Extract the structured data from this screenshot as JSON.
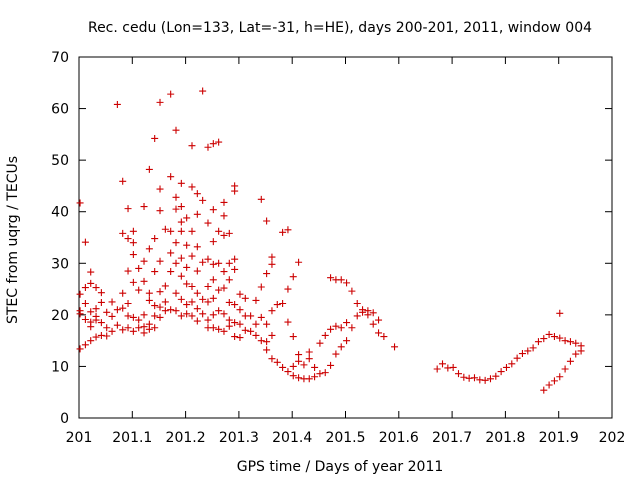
{
  "chart_data": {
    "type": "scatter",
    "title": "Rec. cedu (Lon=133, Lat=-31, h=HE), days 200-201, 2011, window 004",
    "xlabel": "GPS time / Days of year 2011",
    "ylabel": "STEC from uqrg / TECUs",
    "xlim": [
      201,
      202
    ],
    "ylim": [
      0,
      70
    ],
    "x_ticks": [
      "201",
      "201.1",
      "201.2",
      "201.3",
      "201.4",
      "201.5",
      "201.6",
      "201.7",
      "201.8",
      "201.9",
      "202"
    ],
    "y_ticks": [
      "0",
      "10",
      "20",
      "30",
      "40",
      "50",
      "60",
      "70"
    ],
    "grid": false,
    "marker": "+",
    "color": "#cc0000",
    "series": [
      {
        "points": [
          [
            201.002,
            41.7
          ],
          [
            201.002,
            24.0
          ],
          [
            201.002,
            20.8
          ],
          [
            201.002,
            20.2
          ],
          [
            201.002,
            13.4
          ],
          [
            201.012,
            34.1
          ],
          [
            201.012,
            25.3
          ],
          [
            201.012,
            22.2
          ],
          [
            201.012,
            19.1
          ],
          [
            201.012,
            14.2
          ],
          [
            201.022,
            28.3
          ],
          [
            201.022,
            26.1
          ],
          [
            201.022,
            20.6
          ],
          [
            201.022,
            18.6
          ],
          [
            201.022,
            17.7
          ],
          [
            201.022,
            15.0
          ],
          [
            201.032,
            25.3
          ],
          [
            201.032,
            21.2
          ],
          [
            201.032,
            19.7
          ],
          [
            201.032,
            19.0
          ],
          [
            201.032,
            15.7
          ],
          [
            201.042,
            24.3
          ],
          [
            201.042,
            22.4
          ],
          [
            201.042,
            18.5
          ],
          [
            201.042,
            16.0
          ],
          [
            201.052,
            20.5
          ],
          [
            201.052,
            17.5
          ],
          [
            201.052,
            15.9
          ],
          [
            201.062,
            22.5
          ],
          [
            201.062,
            19.7
          ],
          [
            201.062,
            16.8
          ],
          [
            201.072,
            60.8
          ],
          [
            201.072,
            21.0
          ],
          [
            201.072,
            18.0
          ],
          [
            201.082,
            45.9
          ],
          [
            201.082,
            35.8
          ],
          [
            201.082,
            24.2
          ],
          [
            201.082,
            21.3
          ],
          [
            201.082,
            17.1
          ],
          [
            201.092,
            40.6
          ],
          [
            201.092,
            34.8
          ],
          [
            201.092,
            28.5
          ],
          [
            201.092,
            22.2
          ],
          [
            201.092,
            19.8
          ],
          [
            201.092,
            17.5
          ],
          [
            201.102,
            36.2
          ],
          [
            201.102,
            34.0
          ],
          [
            201.102,
            31.7
          ],
          [
            201.102,
            26.3
          ],
          [
            201.102,
            19.5
          ],
          [
            201.102,
            16.8
          ],
          [
            201.112,
            29.0
          ],
          [
            201.112,
            24.8
          ],
          [
            201.112,
            19.0
          ],
          [
            201.112,
            17.5
          ],
          [
            201.122,
            41.0
          ],
          [
            201.122,
            30.4
          ],
          [
            201.122,
            26.5
          ],
          [
            201.122,
            20.0
          ],
          [
            201.122,
            17.7
          ],
          [
            201.122,
            16.5
          ],
          [
            201.132,
            48.2
          ],
          [
            201.132,
            32.8
          ],
          [
            201.132,
            24.2
          ],
          [
            201.132,
            22.8
          ],
          [
            201.132,
            18.2
          ],
          [
            201.132,
            17.2
          ],
          [
            201.142,
            54.2
          ],
          [
            201.142,
            34.8
          ],
          [
            201.142,
            28.4
          ],
          [
            201.142,
            21.8
          ],
          [
            201.142,
            19.8
          ],
          [
            201.142,
            17.5
          ],
          [
            201.152,
            61.2
          ],
          [
            201.152,
            44.4
          ],
          [
            201.152,
            40.2
          ],
          [
            201.152,
            30.4
          ],
          [
            201.152,
            24.5
          ],
          [
            201.152,
            21.5
          ],
          [
            201.152,
            19.5
          ],
          [
            201.162,
            36.6
          ],
          [
            201.162,
            25.6
          ],
          [
            201.162,
            22.5
          ],
          [
            201.162,
            20.8
          ],
          [
            201.172,
            62.8
          ],
          [
            201.172,
            46.8
          ],
          [
            201.172,
            36.2
          ],
          [
            201.172,
            32.0
          ],
          [
            201.172,
            28.4
          ],
          [
            201.172,
            21.0
          ],
          [
            201.182,
            55.8
          ],
          [
            201.182,
            42.8
          ],
          [
            201.182,
            40.5
          ],
          [
            201.182,
            34.0
          ],
          [
            201.182,
            30.0
          ],
          [
            201.182,
            24.2
          ],
          [
            201.182,
            20.8
          ],
          [
            201.192,
            45.5
          ],
          [
            201.192,
            41.0
          ],
          [
            201.192,
            38.0
          ],
          [
            201.192,
            36.2
          ],
          [
            201.192,
            31.0
          ],
          [
            201.192,
            27.5
          ],
          [
            201.192,
            23.0
          ],
          [
            201.192,
            19.8
          ],
          [
            201.202,
            38.8
          ],
          [
            201.202,
            33.5
          ],
          [
            201.202,
            29.2
          ],
          [
            201.202,
            26.0
          ],
          [
            201.202,
            22.0
          ],
          [
            201.202,
            20.2
          ],
          [
            201.212,
            52.8
          ],
          [
            201.212,
            44.8
          ],
          [
            201.212,
            36.2
          ],
          [
            201.212,
            31.4
          ],
          [
            201.212,
            25.5
          ],
          [
            201.212,
            22.5
          ],
          [
            201.212,
            19.8
          ],
          [
            201.222,
            43.5
          ],
          [
            201.222,
            39.5
          ],
          [
            201.222,
            33.2
          ],
          [
            201.222,
            28.5
          ],
          [
            201.222,
            24.2
          ],
          [
            201.222,
            21.2
          ],
          [
            201.222,
            18.8
          ],
          [
            201.232,
            63.4
          ],
          [
            201.232,
            42.2
          ],
          [
            201.232,
            30.2
          ],
          [
            201.232,
            23.0
          ],
          [
            201.232,
            20.2
          ],
          [
            201.242,
            52.5
          ],
          [
            201.242,
            37.8
          ],
          [
            201.242,
            30.8
          ],
          [
            201.242,
            25.5
          ],
          [
            201.242,
            22.5
          ],
          [
            201.242,
            19.0
          ],
          [
            201.242,
            17.5
          ],
          [
            201.252,
            53.2
          ],
          [
            201.252,
            40.4
          ],
          [
            201.252,
            34.2
          ],
          [
            201.252,
            29.8
          ],
          [
            201.252,
            26.8
          ],
          [
            201.252,
            23.2
          ],
          [
            201.252,
            20.0
          ],
          [
            201.252,
            17.5
          ],
          [
            201.262,
            53.5
          ],
          [
            201.262,
            36.2
          ],
          [
            201.262,
            30.0
          ],
          [
            201.262,
            24.8
          ],
          [
            201.262,
            20.8
          ],
          [
            201.262,
            17.2
          ],
          [
            201.272,
            41.8
          ],
          [
            201.272,
            39.2
          ],
          [
            201.272,
            35.4
          ],
          [
            201.272,
            28.4
          ],
          [
            201.272,
            25.2
          ],
          [
            201.272,
            20.2
          ],
          [
            201.272,
            16.8
          ],
          [
            201.282,
            35.8
          ],
          [
            201.282,
            30.0
          ],
          [
            201.282,
            26.8
          ],
          [
            201.282,
            22.4
          ],
          [
            201.282,
            19.0
          ],
          [
            201.282,
            17.8
          ],
          [
            201.292,
            45.0
          ],
          [
            201.292,
            44.0
          ],
          [
            201.292,
            30.8
          ],
          [
            201.292,
            28.8
          ],
          [
            201.292,
            22.0
          ],
          [
            201.292,
            18.5
          ],
          [
            201.292,
            15.8
          ],
          [
            201.302,
            24.0
          ],
          [
            201.302,
            21.0
          ],
          [
            201.302,
            18.2
          ],
          [
            201.302,
            15.6
          ],
          [
            201.312,
            23.2
          ],
          [
            201.312,
            19.8
          ],
          [
            201.312,
            17.0
          ],
          [
            201.322,
            19.8
          ],
          [
            201.322,
            16.8
          ],
          [
            201.332,
            22.8
          ],
          [
            201.332,
            18.2
          ],
          [
            201.332,
            16.0
          ],
          [
            201.342,
            42.4
          ],
          [
            201.342,
            25.4
          ],
          [
            201.342,
            19.5
          ],
          [
            201.342,
            15.0
          ],
          [
            201.352,
            38.2
          ],
          [
            201.352,
            28.0
          ],
          [
            201.352,
            18.2
          ],
          [
            201.352,
            14.8
          ],
          [
            201.352,
            13.2
          ],
          [
            201.362,
            31.2
          ],
          [
            201.362,
            29.8
          ],
          [
            201.362,
            20.8
          ],
          [
            201.362,
            16.0
          ],
          [
            201.362,
            11.5
          ],
          [
            201.372,
            22.0
          ],
          [
            201.372,
            10.8
          ],
          [
            201.382,
            36.0
          ],
          [
            201.382,
            22.2
          ],
          [
            201.382,
            9.8
          ],
          [
            201.392,
            36.5
          ],
          [
            201.392,
            25.0
          ],
          [
            201.392,
            18.6
          ],
          [
            201.392,
            9.0
          ],
          [
            201.402,
            27.4
          ],
          [
            201.402,
            15.8
          ],
          [
            201.402,
            10.0
          ],
          [
            201.402,
            8.2
          ],
          [
            201.412,
            30.2
          ],
          [
            201.412,
            12.3
          ],
          [
            201.412,
            11.0
          ],
          [
            201.412,
            7.8
          ],
          [
            201.422,
            10.3
          ],
          [
            201.422,
            7.6
          ],
          [
            201.432,
            12.8
          ],
          [
            201.432,
            11.5
          ],
          [
            201.432,
            7.6
          ],
          [
            201.442,
            9.8
          ],
          [
            201.442,
            8.0
          ],
          [
            201.452,
            14.5
          ],
          [
            201.452,
            8.6
          ],
          [
            201.462,
            16.0
          ],
          [
            201.462,
            8.8
          ],
          [
            201.472,
            27.2
          ],
          [
            201.472,
            17.2
          ],
          [
            201.472,
            10.2
          ],
          [
            201.482,
            26.8
          ],
          [
            201.482,
            17.8
          ],
          [
            201.482,
            12.4
          ],
          [
            201.492,
            26.8
          ],
          [
            201.492,
            17.5
          ],
          [
            201.492,
            13.8
          ],
          [
            201.502,
            26.2
          ],
          [
            201.502,
            18.5
          ],
          [
            201.502,
            15.0
          ],
          [
            201.512,
            24.6
          ],
          [
            201.512,
            17.5
          ],
          [
            201.522,
            22.2
          ],
          [
            201.522,
            19.8
          ],
          [
            201.532,
            21.0
          ],
          [
            201.532,
            20.5
          ],
          [
            201.542,
            20.8
          ],
          [
            201.542,
            20.0
          ],
          [
            201.552,
            20.4
          ],
          [
            201.552,
            18.2
          ],
          [
            201.562,
            19.0
          ],
          [
            201.562,
            16.5
          ],
          [
            201.572,
            15.8
          ],
          [
            201.592,
            13.8
          ],
          [
            201.672,
            9.5
          ],
          [
            201.682,
            10.5
          ],
          [
            201.692,
            9.7
          ],
          [
            201.702,
            9.8
          ],
          [
            201.712,
            8.6
          ],
          [
            201.722,
            7.9
          ],
          [
            201.732,
            7.7
          ],
          [
            201.742,
            7.8
          ],
          [
            201.752,
            7.4
          ],
          [
            201.762,
            7.3
          ],
          [
            201.772,
            7.6
          ],
          [
            201.782,
            8.1
          ],
          [
            201.792,
            9.0
          ],
          [
            201.802,
            9.8
          ],
          [
            201.812,
            10.5
          ],
          [
            201.822,
            11.6
          ],
          [
            201.832,
            12.5
          ],
          [
            201.842,
            13.0
          ],
          [
            201.852,
            13.6
          ],
          [
            201.862,
            14.8
          ],
          [
            201.872,
            15.4
          ],
          [
            201.872,
            5.4
          ],
          [
            201.882,
            16.2
          ],
          [
            201.882,
            6.4
          ],
          [
            201.892,
            15.8
          ],
          [
            201.892,
            7.2
          ],
          [
            201.902,
            20.3
          ],
          [
            201.902,
            15.5
          ],
          [
            201.902,
            8.0
          ],
          [
            201.912,
            15.0
          ],
          [
            201.912,
            9.5
          ],
          [
            201.922,
            14.8
          ],
          [
            201.922,
            11.0
          ],
          [
            201.932,
            14.5
          ],
          [
            201.932,
            12.4
          ],
          [
            201.942,
            14.0
          ],
          [
            201.942,
            13.0
          ]
        ]
      }
    ]
  }
}
